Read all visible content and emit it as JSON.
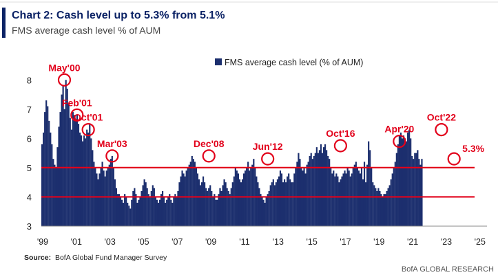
{
  "header": {
    "title": "Chart 2: Cash level up to 5.3% from 5.1%",
    "subtitle": "FMS average cash level % of AUM"
  },
  "source": {
    "label": "Source:",
    "text": "BofA Global Fund Manager Survey"
  },
  "footer": {
    "brand": "BofA GLOBAL RESEARCH"
  },
  "colors": {
    "accent": "#0b2265",
    "bars": "#1c2f6e",
    "highlight": "#e2001a",
    "text": "#222222"
  },
  "chart_data": {
    "type": "bar",
    "title": "Chart 2: Cash level up to 5.3% from 5.1%",
    "subtitle": "FMS average cash level % of AUM",
    "legend": "FMS average cash level (% of AUM)",
    "legend_position": "top-center",
    "x_start": 1999.0,
    "x_step": 0.0833333,
    "xlim": [
      1999.0,
      2025.5
    ],
    "ylim": [
      3,
      8.5
    ],
    "x_ticks": [
      {
        "label": "'99",
        "x": 1999
      },
      {
        "label": "'01",
        "x": 2001
      },
      {
        "label": "'03",
        "x": 2003
      },
      {
        "label": "'05",
        "x": 2005
      },
      {
        "label": "'07",
        "x": 2007
      },
      {
        "label": "'09",
        "x": 2009
      },
      {
        "label": "'11",
        "x": 2011
      },
      {
        "label": "'13",
        "x": 2013
      },
      {
        "label": "'15",
        "x": 2015
      },
      {
        "label": "'17",
        "x": 2017
      },
      {
        "label": "'19",
        "x": 2019
      },
      {
        "label": "'21",
        "x": 2021
      },
      {
        "label": "'23",
        "x": 2023
      },
      {
        "label": "'25",
        "x": 2025
      }
    ],
    "y_ticks": [
      3,
      4,
      5,
      6,
      7,
      8
    ],
    "reference_lines": [
      4.0,
      5.0
    ],
    "annotations": [
      {
        "label": "May'00",
        "x": 2000.33,
        "y": 8.0,
        "label_pos": "above"
      },
      {
        "label": "Feb'01",
        "x": 2001.08,
        "y": 6.8,
        "label_pos": "above"
      },
      {
        "label": "Oct'01",
        "x": 2001.75,
        "y": 6.3,
        "label_pos": "above"
      },
      {
        "label": "Mar'03",
        "x": 2003.17,
        "y": 5.4,
        "label_pos": "above"
      },
      {
        "label": "Dec'08",
        "x": 2008.92,
        "y": 5.4,
        "label_pos": "above"
      },
      {
        "label": "Jun'12",
        "x": 2012.42,
        "y": 5.3,
        "label_pos": "above"
      },
      {
        "label": "Oct'16",
        "x": 2016.75,
        "y": 5.75,
        "label_pos": "above"
      },
      {
        "label": "Apr'20",
        "x": 2020.25,
        "y": 5.9,
        "label_pos": "above"
      },
      {
        "label": "Oct'22",
        "x": 2022.75,
        "y": 6.3,
        "label_pos": "above"
      },
      {
        "label": "5.3%",
        "x": 2023.5,
        "y": 5.3,
        "label_pos": "right"
      }
    ],
    "series": [
      {
        "name": "FMS average cash level (% of AUM)",
        "values": [
          5.8,
          6.2,
          6.9,
          7.3,
          7.1,
          6.6,
          6.2,
          5.8,
          5.3,
          5.1,
          5.0,
          5.7,
          6.4,
          6.9,
          7.5,
          7.8,
          7.0,
          8.0,
          7.7,
          7.2,
          6.7,
          6.3,
          6.9,
          6.8,
          6.6,
          6.8,
          6.5,
          6.2,
          6.1,
          5.9,
          6.1,
          6.0,
          6.3,
          6.2,
          6.5,
          6.0,
          5.6,
          5.2,
          5.0,
          4.8,
          4.6,
          4.8,
          5.0,
          5.2,
          4.9,
          4.7,
          4.9,
          5.0,
          5.1,
          5.3,
          5.4,
          5.0,
          4.6,
          4.3,
          4.1,
          4.1,
          4.0,
          3.9,
          3.8,
          4.1,
          4.0,
          3.8,
          3.7,
          3.6,
          3.9,
          4.2,
          4.3,
          4.1,
          3.8,
          3.9,
          4.0,
          4.2,
          4.4,
          4.6,
          4.5,
          4.3,
          4.1,
          4.0,
          4.2,
          4.4,
          4.3,
          4.0,
          3.9,
          3.8,
          3.9,
          4.1,
          4.2,
          4.0,
          3.8,
          3.9,
          4.0,
          4.1,
          3.9,
          3.8,
          4.0,
          4.1,
          4.0,
          4.2,
          4.5,
          4.7,
          4.9,
          4.8,
          4.7,
          4.9,
          5.0,
          5.1,
          5.2,
          5.4,
          5.3,
          5.2,
          5.0,
          4.8,
          4.6,
          4.4,
          4.5,
          4.7,
          4.5,
          4.3,
          4.2,
          4.3,
          4.4,
          4.2,
          4.0,
          4.1,
          3.9,
          3.9,
          4.1,
          4.3,
          4.2,
          4.4,
          4.6,
          4.5,
          4.3,
          4.2,
          4.1,
          4.3,
          4.5,
          4.7,
          5.0,
          4.9,
          4.8,
          4.6,
          4.5,
          4.6,
          4.8,
          4.9,
          5.0,
          5.2,
          4.9,
          5.0,
          5.1,
          5.3,
          5.0,
          4.7,
          4.5,
          4.3,
          4.1,
          4.0,
          3.9,
          3.8,
          4.0,
          4.1,
          4.2,
          4.4,
          4.5,
          4.6,
          4.4,
          4.5,
          4.6,
          4.7,
          4.9,
          4.8,
          4.5,
          4.6,
          4.5,
          4.7,
          4.8,
          4.6,
          4.5,
          4.5,
          4.8,
          5.0,
          5.2,
          5.5,
          5.3,
          5.0,
          4.9,
          5.0,
          4.8,
          5.1,
          5.2,
          5.4,
          5.5,
          5.3,
          5.4,
          5.5,
          5.7,
          5.5,
          5.6,
          5.8,
          5.5,
          5.7,
          5.8,
          5.6,
          5.4,
          5.3,
          5.0,
          4.8,
          4.9,
          4.7,
          4.8,
          4.7,
          4.5,
          4.6,
          4.7,
          4.8,
          4.9,
          4.8,
          5.0,
          4.9,
          4.7,
          4.8,
          5.0,
          5.1,
          5.2,
          5.0,
          4.9,
          4.8,
          5.0,
          4.6,
          5.2,
          4.5,
          5.1,
          5.9,
          5.6,
          5.0,
          4.5,
          4.4,
          4.3,
          4.2,
          4.3,
          4.2,
          4.1,
          4.0,
          4.1,
          4.1,
          4.2,
          4.3,
          4.4,
          4.6,
          4.8,
          5.0,
          5.2,
          5.5,
          5.8,
          6.1,
          6.2,
          6.0,
          6.1,
          6.0,
          5.9,
          6.2,
          6.3,
          6.0,
          5.4,
          5.3,
          5.5,
          5.5,
          5.6,
          5.3,
          5.1,
          5.3
        ]
      }
    ]
  }
}
